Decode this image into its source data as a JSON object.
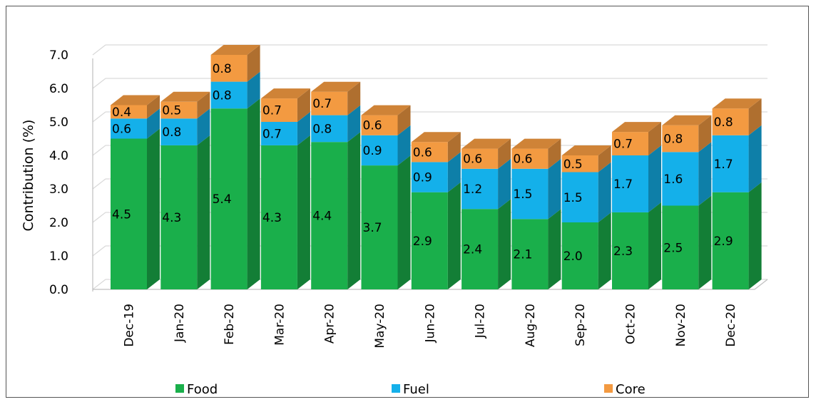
{
  "chart_data": {
    "type": "bar",
    "stacked": true,
    "three_d": true,
    "categories": [
      "Dec-19",
      "Jan-20",
      "Feb-20",
      "Mar-20",
      "Apr-20",
      "May-20",
      "Jun-20",
      "Jul-20",
      "Aug-20",
      "Sep-20",
      "Oct-20",
      "Nov-20",
      "Dec-20"
    ],
    "series": [
      {
        "name": "Food",
        "color": "#1aaf4b",
        "values": [
          4.5,
          4.3,
          5.4,
          4.3,
          4.4,
          3.7,
          2.9,
          2.4,
          2.1,
          2.0,
          2.3,
          2.5,
          2.9
        ]
      },
      {
        "name": "Fuel",
        "color": "#14b0ea",
        "values": [
          0.6,
          0.8,
          0.8,
          0.7,
          0.8,
          0.9,
          0.9,
          1.2,
          1.5,
          1.5,
          1.7,
          1.6,
          1.7
        ]
      },
      {
        "name": "Core",
        "color": "#f39a41",
        "values": [
          0.4,
          0.5,
          0.8,
          0.7,
          0.7,
          0.6,
          0.6,
          0.6,
          0.6,
          0.5,
          0.7,
          0.8,
          0.8
        ]
      }
    ],
    "data_labels": [
      [
        "4.5",
        "4.3",
        "5.4",
        "4.3",
        "4.4",
        "3.7",
        "2.9",
        "2.4",
        "2.1",
        "2.0",
        "2.3",
        "2.5",
        "2.9"
      ],
      [
        "0.6",
        "0.8",
        "0.8",
        "0.7",
        "0.8",
        "0.9",
        "0.9",
        "1.2",
        "1.5",
        "1.5",
        "1.7",
        "1.6",
        "1.7"
      ],
      [
        "0.4",
        "0.5",
        "0.8",
        "0.7",
        "0.7",
        "0.6",
        "0.6",
        "0.6",
        "0.6",
        "0.5",
        "0.7",
        "0.8",
        "0.8"
      ]
    ],
    "ylabel": "Contribution (%)",
    "yticks": [
      "0.0",
      "1.0",
      "2.0",
      "3.0",
      "4.0",
      "5.0",
      "6.0",
      "7.0"
    ],
    "ylim": [
      0,
      7
    ],
    "grid": true,
    "legend_position": "bottom"
  }
}
